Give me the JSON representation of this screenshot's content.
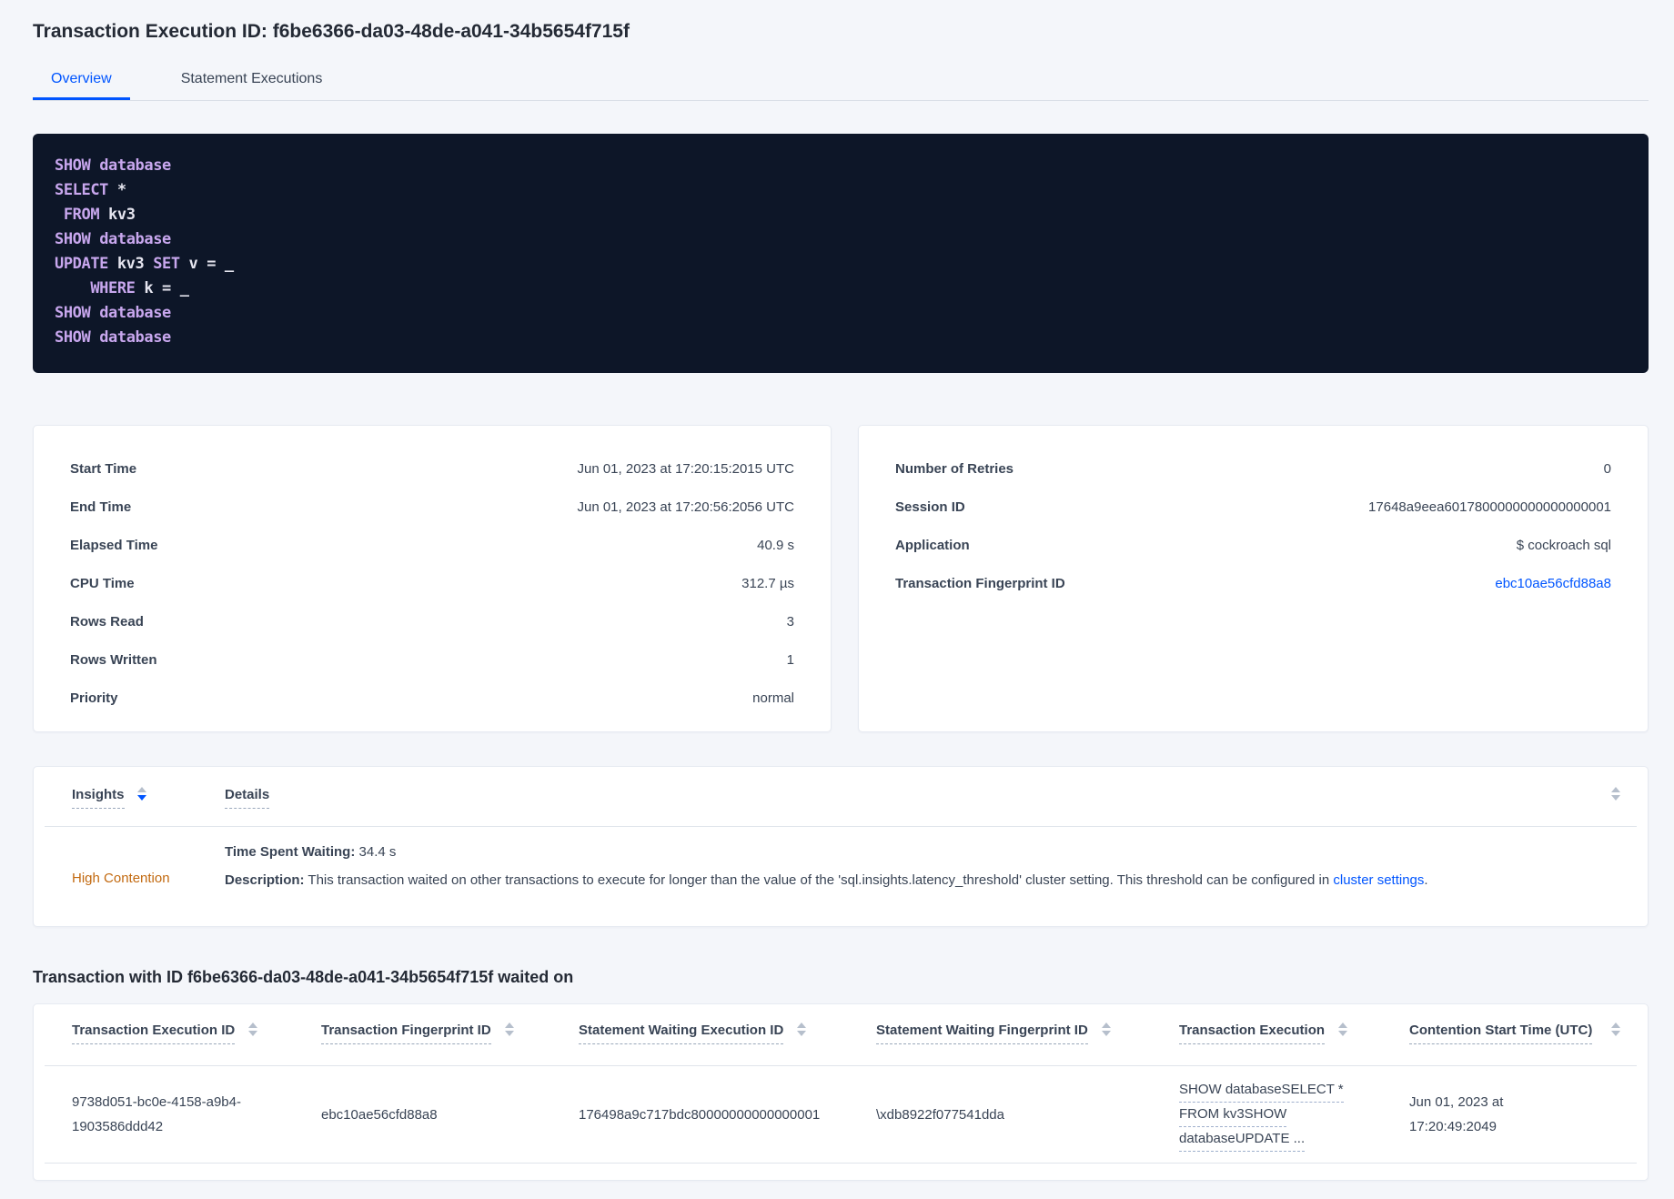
{
  "page": {
    "title": "Transaction Execution ID: f6be6366-da03-48de-a041-34b5654f715f",
    "tabs": [
      {
        "label": "Overview",
        "active": true
      },
      {
        "label": "Statement Executions",
        "active": false
      }
    ]
  },
  "colors": {
    "accent_blue": "#0055ff",
    "insight_warning_orange": "#c2690f",
    "code_background": "#0d1628",
    "code_keyword": "#c8a7ee",
    "code_text": "#e6e6f0"
  },
  "code_block": {
    "lines": [
      {
        "tokens": [
          {
            "type": "kw",
            "text": "SHOW"
          },
          {
            "type": "plain",
            "text": " "
          },
          {
            "type": "kw",
            "text": "database"
          }
        ]
      },
      {
        "tokens": [
          {
            "type": "kw",
            "text": "SELECT"
          },
          {
            "type": "plain",
            "text": " *"
          }
        ]
      },
      {
        "tokens": [
          {
            "type": "plain",
            "text": " "
          },
          {
            "type": "kw",
            "text": "FROM"
          },
          {
            "type": "plain",
            "text": " kv3"
          }
        ]
      },
      {
        "tokens": [
          {
            "type": "kw",
            "text": "SHOW"
          },
          {
            "type": "plain",
            "text": " "
          },
          {
            "type": "kw",
            "text": "database"
          }
        ]
      },
      {
        "tokens": [
          {
            "type": "kw",
            "text": "UPDATE"
          },
          {
            "type": "plain",
            "text": " kv3 "
          },
          {
            "type": "kw",
            "text": "SET"
          },
          {
            "type": "plain",
            "text": " v = _"
          }
        ]
      },
      {
        "tokens": [
          {
            "type": "plain",
            "text": "    "
          },
          {
            "type": "kw",
            "text": "WHERE"
          },
          {
            "type": "plain",
            "text": " k = _"
          }
        ]
      },
      {
        "tokens": [
          {
            "type": "kw",
            "text": "SHOW"
          },
          {
            "type": "plain",
            "text": " "
          },
          {
            "type": "kw",
            "text": "database"
          }
        ]
      },
      {
        "tokens": [
          {
            "type": "kw",
            "text": "SHOW"
          },
          {
            "type": "plain",
            "text": " "
          },
          {
            "type": "kw",
            "text": "database"
          }
        ]
      }
    ]
  },
  "summary_left": {
    "rows": [
      {
        "label": "Start Time",
        "value": "Jun 01, 2023 at 17:20:15:2015 UTC"
      },
      {
        "label": "End Time",
        "value": "Jun 01, 2023 at 17:20:56:2056 UTC"
      },
      {
        "label": "Elapsed Time",
        "value": "40.9 s"
      },
      {
        "label": "CPU Time",
        "value": "312.7 µs"
      },
      {
        "label": "Rows Read",
        "value": "3"
      },
      {
        "label": "Rows Written",
        "value": "1"
      },
      {
        "label": "Priority",
        "value": "normal"
      }
    ]
  },
  "summary_right": {
    "rows": [
      {
        "label": "Number of Retries",
        "value": "0"
      },
      {
        "label": "Session ID",
        "value": "17648a9eea6017800000000000000001"
      },
      {
        "label": "Application",
        "value": "$ cockroach sql"
      },
      {
        "label": "Transaction Fingerprint ID",
        "value": "ebc10ae56cfd88a8",
        "link": true
      }
    ]
  },
  "insights_table": {
    "columns": [
      {
        "label": "Insights",
        "sorted": "desc"
      },
      {
        "label": "Details",
        "sorted": null
      }
    ],
    "row": {
      "insight": "High Contention",
      "waiting_label": "Time Spent Waiting:",
      "waiting_value": " 34.4 s",
      "description_label": "Description:",
      "description_text": " This transaction waited on other transactions to execute for longer than the value of the 'sql.insights.latency_threshold' cluster setting. This threshold can be configured in ",
      "description_link": "cluster settings",
      "description_suffix": "."
    }
  },
  "waited_section": {
    "heading": "Transaction with ID f6be6366-da03-48de-a041-34b5654f715f waited on",
    "columns": [
      "Transaction Execution ID",
      "Transaction Fingerprint ID",
      "Statement Waiting Execution ID",
      "Statement Waiting Fingerprint ID",
      "Transaction Execution",
      "Contention Start Time (UTC)"
    ],
    "row": {
      "transaction_execution_id": "9738d051-bc0e-4158-a9b4-1903586ddd42",
      "transaction_fingerprint_id": "ebc10ae56cfd88a8",
      "statement_waiting_execution_id": "176498a9c717bdc80000000000000001",
      "statement_waiting_fingerprint_id": "\\xdb8922f077541dda",
      "transaction_execution_lines": [
        "SHOW databaseSELECT *",
        "FROM kv3SHOW",
        "databaseUPDATE ..."
      ],
      "contention_start_time": "Jun 01, 2023 at 17:20:49:2049"
    }
  }
}
